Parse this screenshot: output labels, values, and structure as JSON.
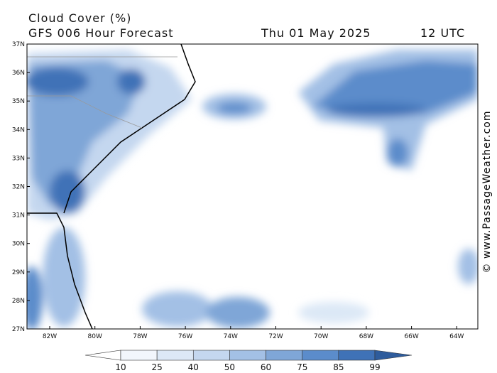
{
  "header": {
    "title": "Cloud Cover (%)",
    "model": "GFS 006 Hour Forecast",
    "date": "Thu 01 May 2025",
    "time": "12 UTC"
  },
  "credit": "© www.PassageWeather.com",
  "map": {
    "lat_labels": [
      "37N",
      "36N",
      "35N",
      "34N",
      "33N",
      "32N",
      "31N",
      "30N",
      "29N",
      "28N",
      "27N"
    ],
    "lon_labels": [
      "82W",
      "80W",
      "78W",
      "76W",
      "74W",
      "72W",
      "70W",
      "68W",
      "66W",
      "64W"
    ]
  },
  "colorbar": {
    "levels": [
      10,
      25,
      40,
      50,
      60,
      75,
      85,
      99
    ],
    "colors": [
      "#ffffff",
      "#f2f6fc",
      "#dce8f6",
      "#c4d7ef",
      "#a3c0e5",
      "#7fa6d7",
      "#5b8ccb",
      "#3f72b7",
      "#2e5c9c"
    ]
  }
}
